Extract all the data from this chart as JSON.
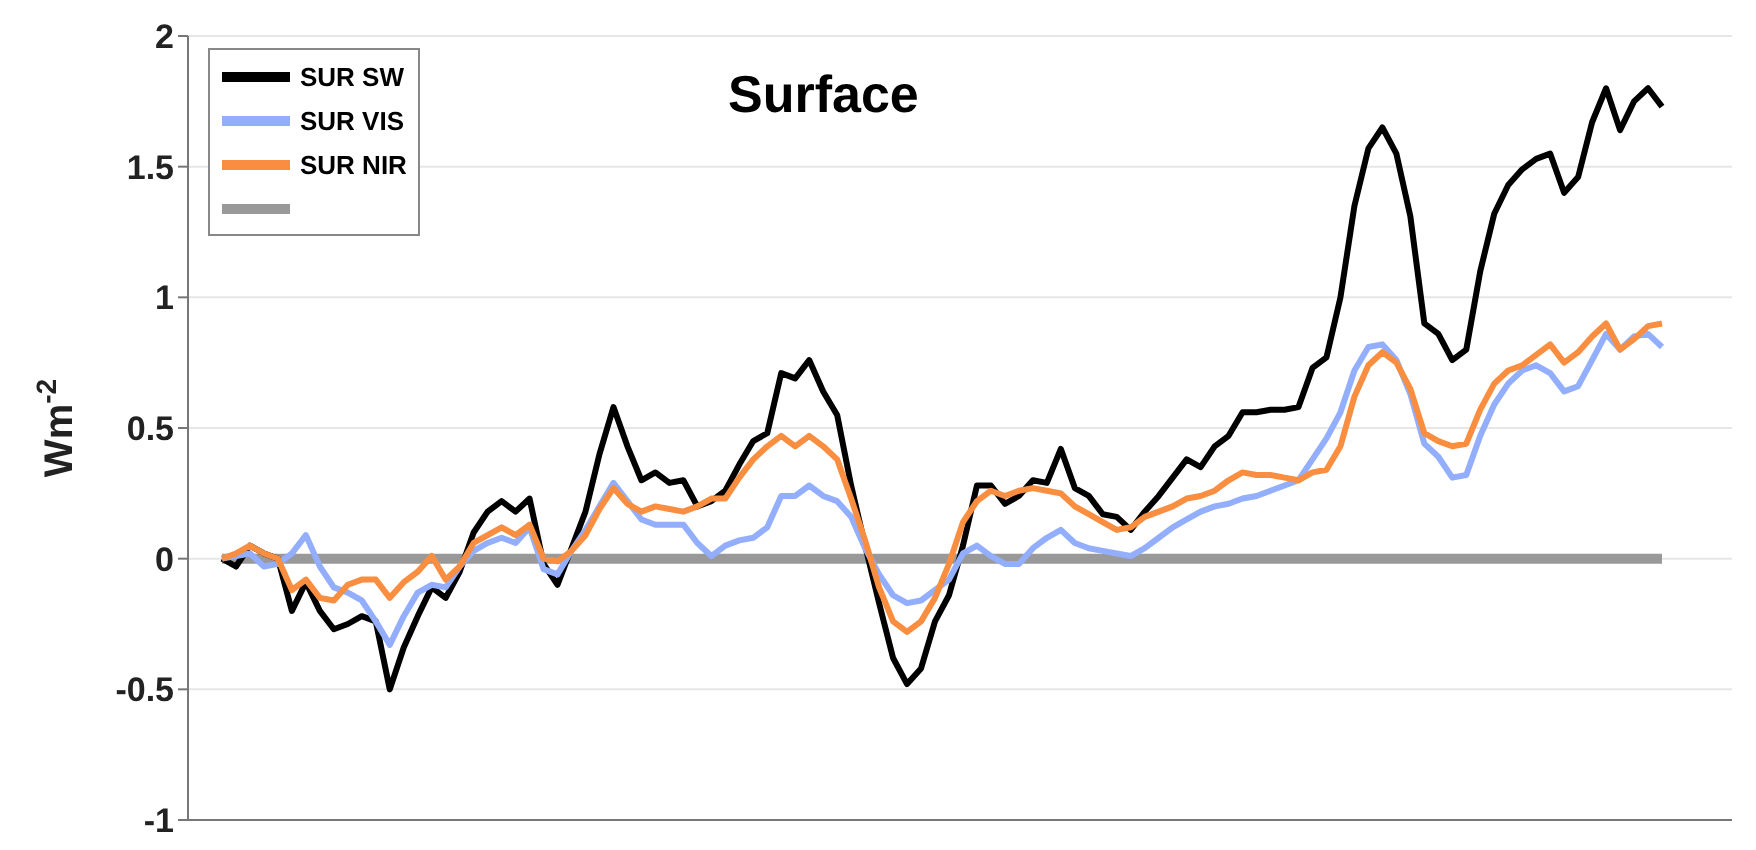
{
  "chart_data": {
    "type": "line",
    "title": "Surface",
    "ylabel": "Wm$^{-2}$",
    "categories": [
      null,
      null,
      null,
      null,
      null,
      null,
      null,
      null,
      null,
      null,
      null,
      null,
      null,
      null,
      null,
      null,
      null,
      null,
      null,
      null,
      null,
      null,
      null,
      null,
      null,
      null,
      null,
      null,
      null,
      null,
      null,
      null,
      null,
      null,
      null,
      null,
      null,
      null,
      null,
      null,
      null,
      null,
      null,
      null,
      null,
      null,
      null,
      null,
      null,
      null,
      null,
      null,
      null,
      null,
      null,
      null,
      null,
      null,
      null,
      null,
      null,
      null,
      null,
      null,
      null,
      null,
      null,
      null,
      null,
      null,
      null,
      null,
      null,
      null,
      null,
      null,
      null,
      null,
      null,
      null,
      null,
      null,
      null,
      null,
      null,
      null,
      null,
      null,
      null,
      null,
      null,
      null,
      null,
      null,
      null,
      null,
      null,
      null,
      null,
      null,
      null,
      null,
      null,
      null
    ],
    "ylim": [
      -1,
      2
    ],
    "yticks": [
      -1,
      -0.5,
      0,
      0.5,
      1,
      1.5,
      2
    ],
    "tick_labels": "y",
    "grid": "y",
    "legend": "top left",
    "marker": "none",
    "line_style": "solid",
    "series": [
      {
        "name": "SUR SW",
        "color": "#000000",
        "values": [
          0,
          -0.03,
          0.05,
          0.02,
          0,
          -0.2,
          -0.09,
          -0.2,
          -0.27,
          -0.25,
          -0.22,
          -0.24,
          -0.5,
          -0.34,
          -0.22,
          -0.11,
          -0.15,
          -0.05,
          0.1,
          0.18,
          0.22,
          0.18,
          0.23,
          -0.02,
          -0.1,
          0.04,
          0.18,
          0.4,
          0.58,
          0.43,
          0.3,
          0.33,
          0.29,
          0.3,
          0.2,
          0.22,
          0.26,
          0.36,
          0.45,
          0.48,
          0.71,
          0.69,
          0.76,
          0.64,
          0.55,
          0.28,
          0.05,
          -0.17,
          -0.38,
          -0.48,
          -0.42,
          -0.24,
          -0.14,
          0.05,
          0.28,
          0.28,
          0.21,
          0.24,
          0.3,
          0.29,
          0.42,
          0.27,
          0.24,
          0.17,
          0.16,
          0.11,
          0.18,
          0.24,
          0.31,
          0.38,
          0.35,
          0.43,
          0.47,
          0.56,
          0.56,
          0.57,
          0.57,
          0.58,
          0.73,
          0.77,
          1.0,
          1.35,
          1.57,
          1.65,
          1.55,
          1.31,
          0.9,
          0.86,
          0.76,
          0.8,
          1.1,
          1.32,
          1.43,
          1.49,
          1.53,
          1.55,
          1.4,
          1.46,
          1.67,
          1.8,
          1.64,
          1.75,
          1.8,
          1.73
        ]
      },
      {
        "name": "SUR VIS",
        "color": "#92aefc",
        "values": [
          0,
          0.01,
          0.02,
          -0.03,
          -0.02,
          0.02,
          0.09,
          -0.03,
          -0.11,
          -0.13,
          -0.16,
          -0.24,
          -0.33,
          -0.22,
          -0.13,
          -0.1,
          -0.11,
          -0.03,
          0.03,
          0.06,
          0.08,
          0.06,
          0.12,
          -0.04,
          -0.06,
          0.03,
          0.11,
          0.2,
          0.29,
          0.22,
          0.15,
          0.13,
          0.13,
          0.13,
          0.06,
          0.01,
          0.05,
          0.07,
          0.08,
          0.12,
          0.24,
          0.24,
          0.28,
          0.24,
          0.22,
          0.16,
          0.04,
          -0.06,
          -0.14,
          -0.17,
          -0.16,
          -0.12,
          -0.08,
          0.02,
          0.05,
          0.01,
          -0.02,
          -0.02,
          0.04,
          0.08,
          0.11,
          0.06,
          0.04,
          0.03,
          0.02,
          0.01,
          0.04,
          0.08,
          0.12,
          0.15,
          0.18,
          0.2,
          0.21,
          0.23,
          0.24,
          0.26,
          0.28,
          0.3,
          0.38,
          0.46,
          0.56,
          0.72,
          0.81,
          0.82,
          0.76,
          0.63,
          0.44,
          0.39,
          0.31,
          0.32,
          0.47,
          0.59,
          0.67,
          0.72,
          0.74,
          0.71,
          0.64,
          0.66,
          0.76,
          0.86,
          0.8,
          0.85,
          0.86,
          0.81
        ]
      },
      {
        "name": "SUR NIR",
        "color": "#f98e40",
        "values": [
          0,
          0.02,
          0.05,
          0.02,
          0,
          -0.12,
          -0.08,
          -0.15,
          -0.16,
          -0.1,
          -0.08,
          -0.08,
          -0.15,
          -0.09,
          -0.05,
          0.01,
          -0.08,
          -0.03,
          0.06,
          0.09,
          0.12,
          0.09,
          0.13,
          0,
          -0.01,
          0.03,
          0.09,
          0.19,
          0.27,
          0.21,
          0.18,
          0.2,
          0.19,
          0.18,
          0.2,
          0.23,
          0.23,
          0.31,
          0.38,
          0.43,
          0.47,
          0.43,
          0.47,
          0.43,
          0.38,
          0.23,
          0.07,
          -0.11,
          -0.24,
          -0.28,
          -0.24,
          -0.15,
          -0.02,
          0.14,
          0.22,
          0.26,
          0.24,
          0.26,
          0.27,
          0.26,
          0.25,
          0.2,
          0.17,
          0.14,
          0.11,
          0.12,
          0.16,
          0.18,
          0.2,
          0.23,
          0.24,
          0.26,
          0.3,
          0.33,
          0.32,
          0.32,
          0.31,
          0.3,
          0.33,
          0.34,
          0.43,
          0.62,
          0.74,
          0.79,
          0.75,
          0.65,
          0.48,
          0.45,
          0.43,
          0.44,
          0.57,
          0.67,
          0.72,
          0.74,
          0.78,
          0.82,
          0.75,
          0.79,
          0.85,
          0.9,
          0.8,
          0.84,
          0.89,
          0.9
        ]
      },
      {
        "color": "#999999",
        "values": [
          0,
          0,
          0,
          0,
          0,
          0,
          0,
          0,
          0,
          0,
          0,
          0,
          0,
          0,
          0,
          0,
          0,
          0,
          0,
          0,
          0,
          0,
          0,
          0,
          0,
          0,
          0,
          0,
          0,
          0,
          0,
          0,
          0,
          0,
          0,
          0,
          0,
          0,
          0,
          0,
          0,
          0,
          0,
          0,
          0,
          0,
          0,
          0,
          0,
          0,
          0,
          0,
          0,
          0,
          0,
          0,
          0,
          0,
          0,
          0,
          0,
          0,
          0,
          0,
          0,
          0,
          0,
          0,
          0,
          0,
          0,
          0,
          0,
          0,
          0,
          0,
          0,
          0,
          0,
          0,
          0,
          0,
          0,
          0,
          0,
          0,
          0,
          0,
          0,
          0,
          0,
          0,
          0,
          0,
          0,
          0,
          0,
          0,
          0,
          0,
          0,
          0,
          0,
          0
        ]
      }
    ]
  }
}
